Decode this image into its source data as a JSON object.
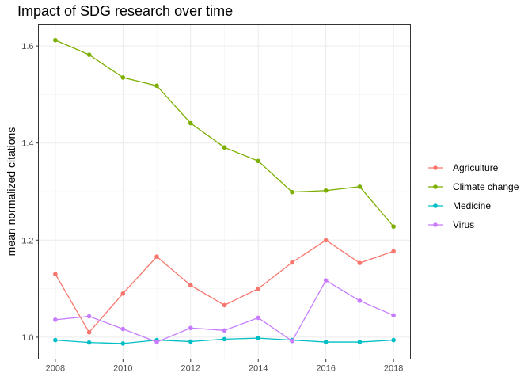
{
  "chart_data": {
    "type": "line",
    "title": "Impact of SDG research over time",
    "xlabel": "",
    "ylabel": "mean normalized citations",
    "x": [
      2008,
      2009,
      2010,
      2011,
      2012,
      2013,
      2014,
      2015,
      2016,
      2017,
      2018
    ],
    "x_ticks": [
      2008,
      2010,
      2012,
      2014,
      2016,
      2018
    ],
    "y_ticks": [
      1.0,
      1.2,
      1.4,
      1.6
    ],
    "y_tick_labels": [
      "1.0",
      "1.2",
      "1.4",
      "1.6"
    ],
    "xlim": [
      2007.5,
      2018.5
    ],
    "ylim": [
      0.955,
      1.645
    ],
    "grid": true,
    "legend_position": "right",
    "series": [
      {
        "name": "Agriculture",
        "color": "#F8766D",
        "values": [
          1.13,
          1.01,
          1.09,
          1.166,
          1.107,
          1.066,
          1.1,
          1.154,
          1.2,
          1.153,
          1.177
        ]
      },
      {
        "name": "Climate change",
        "color": "#7CAE00",
        "values": [
          1.612,
          1.582,
          1.535,
          1.518,
          1.441,
          1.391,
          1.363,
          1.299,
          1.302,
          1.31,
          1.228
        ]
      },
      {
        "name": "Medicine",
        "color": "#00BFC4",
        "values": [
          0.994,
          0.989,
          0.987,
          0.994,
          0.991,
          0.996,
          0.998,
          0.994,
          0.99,
          0.99,
          0.994
        ]
      },
      {
        "name": "Virus",
        "color": "#C77CFF",
        "values": [
          1.036,
          1.043,
          1.017,
          0.99,
          1.019,
          1.014,
          1.04,
          0.992,
          1.117,
          1.075,
          1.045
        ]
      }
    ]
  }
}
